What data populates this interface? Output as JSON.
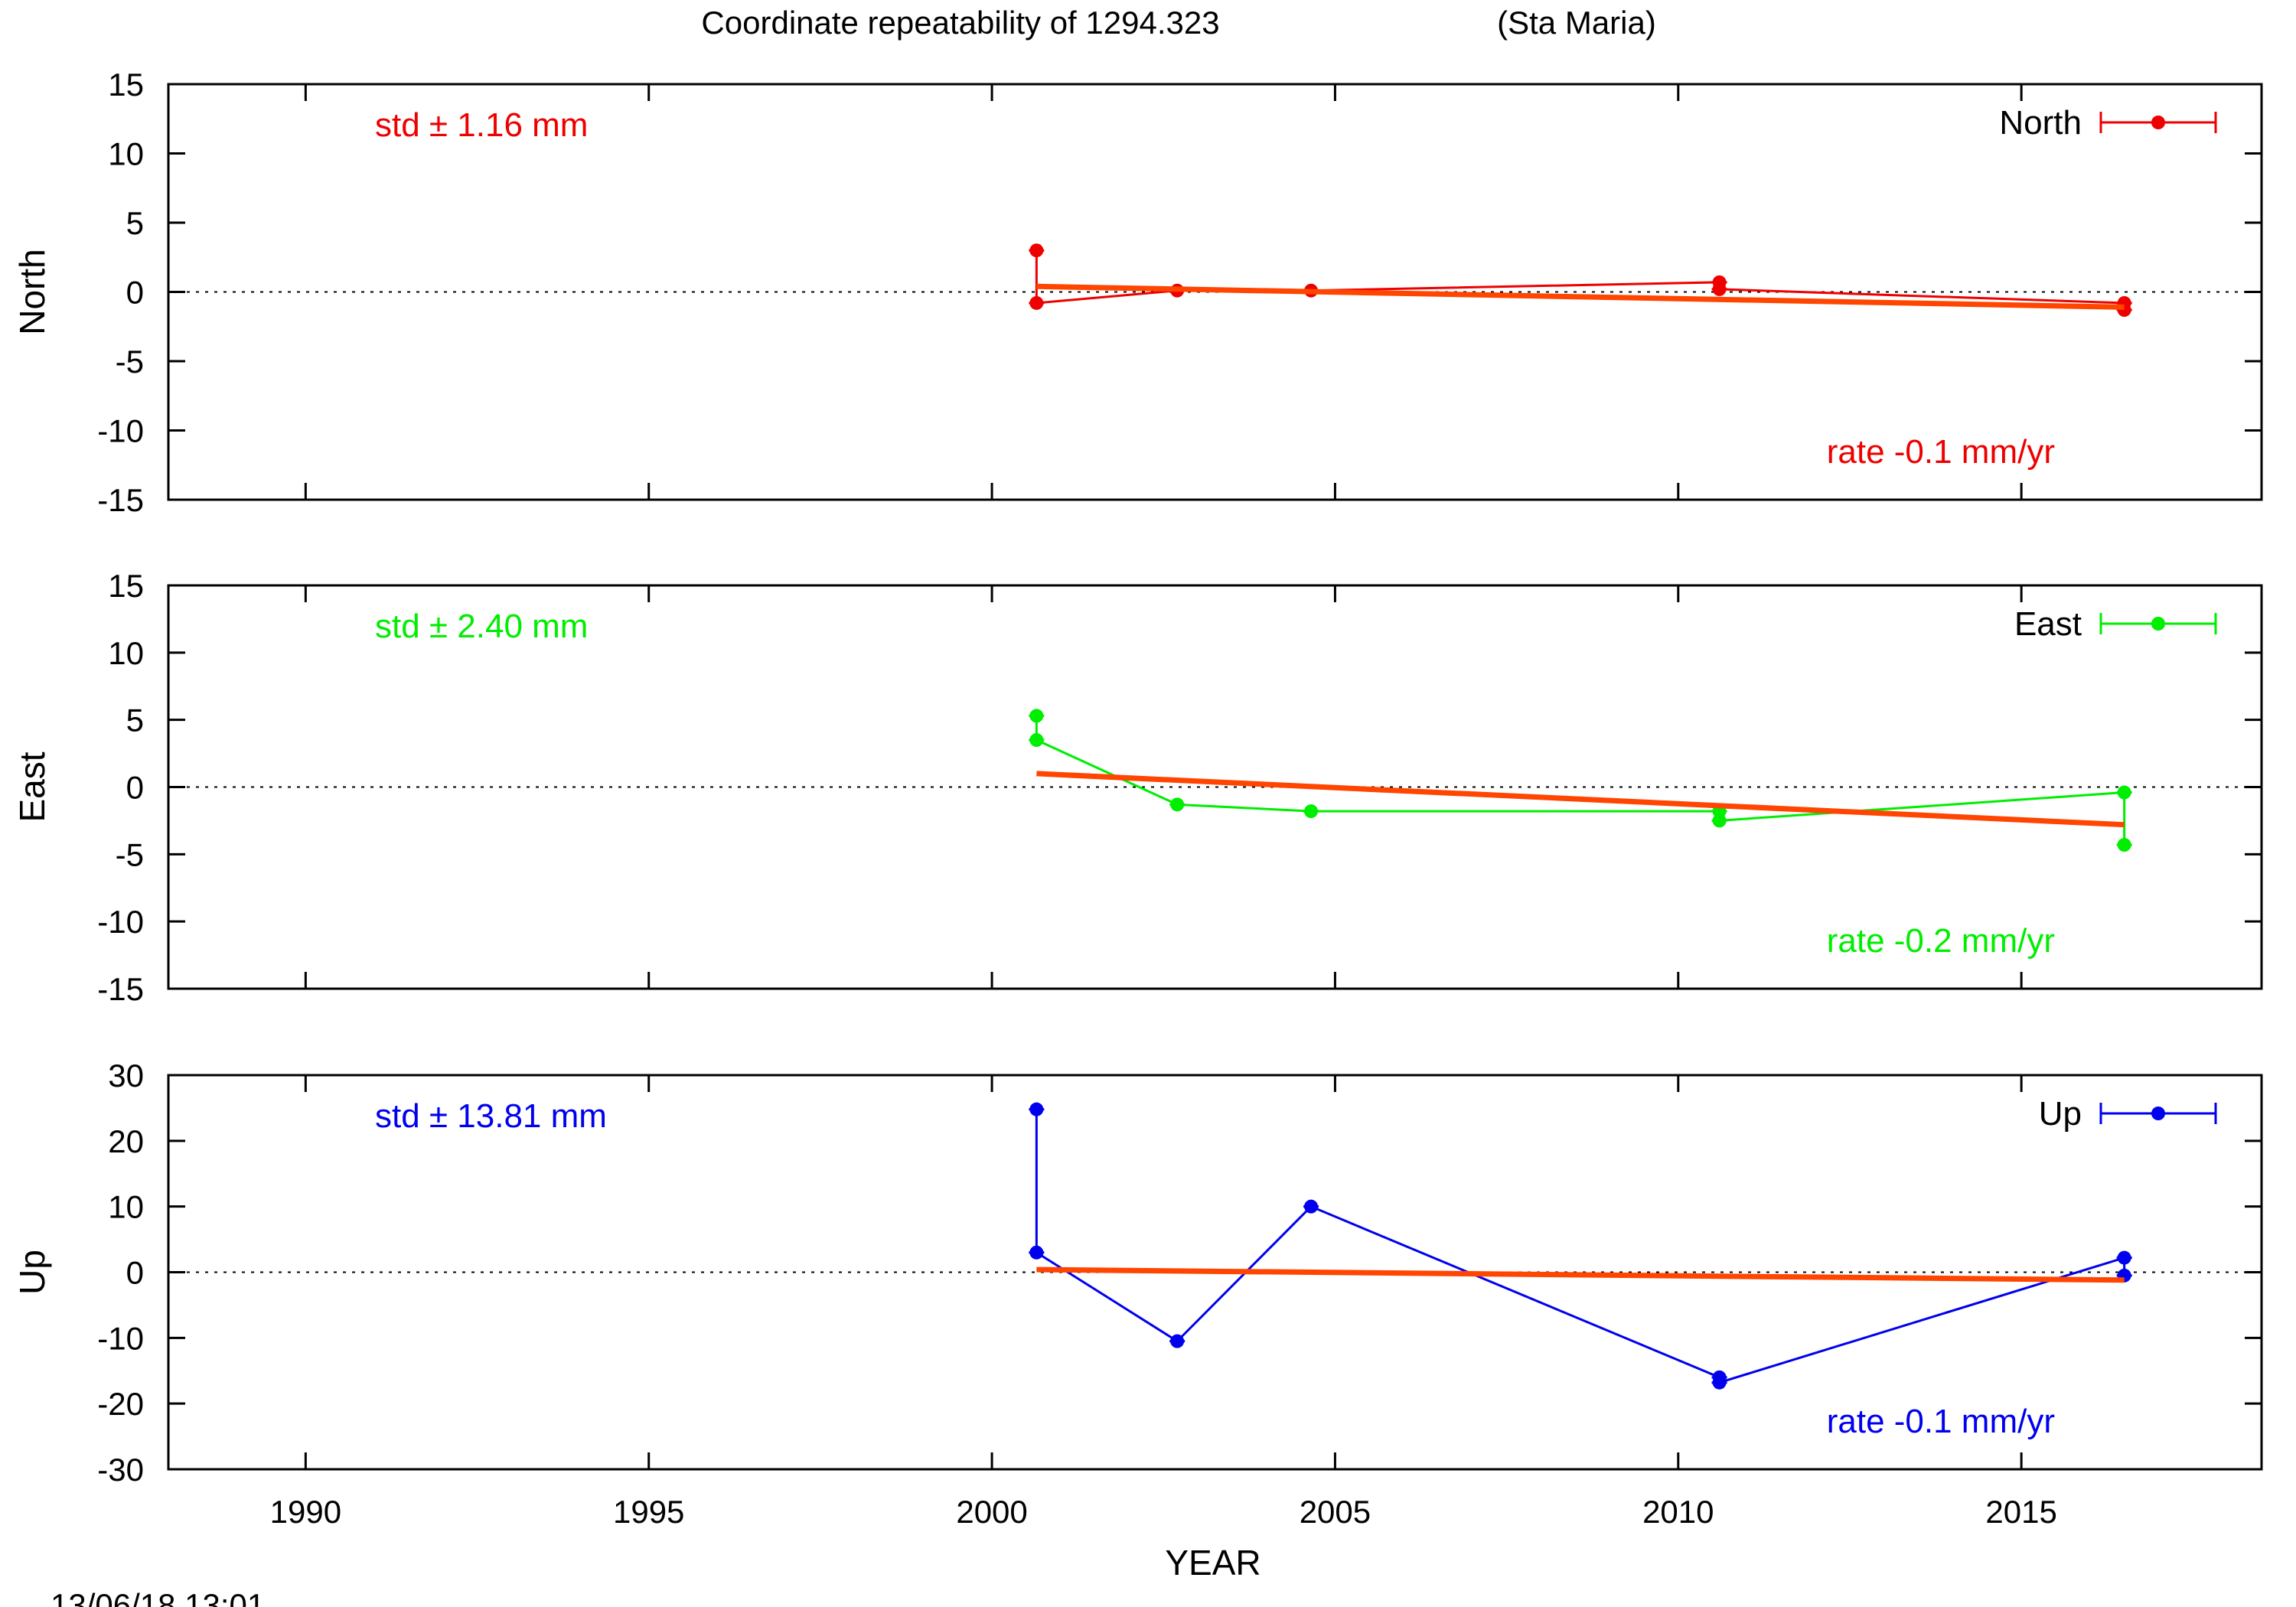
{
  "title": "Coordinate repeatability of 1294.323",
  "station": "(Sta Maria)",
  "timestamp": "13/06/18 13:01",
  "colors": {
    "north": "#ee0000",
    "east": "#00ee00",
    "up": "#0000ee",
    "fit": "#ff4500"
  },
  "chart_data": [
    {
      "type": "line",
      "id": "north",
      "ylabel": "North",
      "xlabel": "",
      "xlim": [
        1988,
        2018.5
      ],
      "ylim": [
        -15,
        15
      ],
      "yticks": [
        15,
        10,
        5,
        0,
        -5,
        -10,
        -15
      ],
      "xticks": [
        1990,
        1995,
        2000,
        2005,
        2010,
        2015
      ],
      "legend": "North",
      "legend_position": "top-right",
      "std_text": "std ± 1.16 mm",
      "rate_text": "rate -0.1 mm/yr",
      "series": [
        {
          "name": "North",
          "x": [
            2000.65,
            2000.65,
            2002.7,
            2004.65,
            2010.6,
            2010.6,
            2016.5,
            2016.5
          ],
          "y": [
            3.0,
            -0.8,
            0.1,
            0.1,
            0.7,
            0.2,
            -0.8,
            -1.3
          ]
        }
      ],
      "fit": {
        "x": [
          2000.65,
          2016.5
        ],
        "y": [
          0.4,
          -1.1
        ]
      }
    },
    {
      "type": "line",
      "id": "east",
      "ylabel": "East",
      "xlabel": "",
      "xlim": [
        1988,
        2018.5
      ],
      "ylim": [
        -15,
        15
      ],
      "yticks": [
        15,
        10,
        5,
        0,
        -5,
        -10,
        -15
      ],
      "xticks": [
        1990,
        1995,
        2000,
        2005,
        2010,
        2015
      ],
      "legend": "East",
      "legend_position": "top-right",
      "std_text": "std ± 2.40 mm",
      "rate_text": "rate -0.2 mm/yr",
      "series": [
        {
          "name": "East",
          "x": [
            2000.65,
            2000.65,
            2002.7,
            2004.65,
            2010.6,
            2010.6,
            2016.5,
            2016.5
          ],
          "y": [
            5.3,
            3.5,
            -1.3,
            -1.8,
            -1.8,
            -2.5,
            -0.4,
            -4.3
          ]
        }
      ],
      "fit": {
        "x": [
          2000.65,
          2016.5
        ],
        "y": [
          1.0,
          -2.8
        ]
      }
    },
    {
      "type": "line",
      "id": "up",
      "ylabel": "Up",
      "xlabel": "YEAR",
      "xlim": [
        1988,
        2018.5
      ],
      "ylim": [
        -30,
        30
      ],
      "yticks": [
        30,
        20,
        10,
        0,
        -10,
        -20,
        -30
      ],
      "xticks": [
        1990,
        1995,
        2000,
        2005,
        2010,
        2015
      ],
      "legend": "Up",
      "legend_position": "top-right",
      "std_text": "std ± 13.81 mm",
      "rate_text": "rate -0.1 mm/yr",
      "series": [
        {
          "name": "Up",
          "x": [
            2000.65,
            2000.65,
            2002.7,
            2004.65,
            2010.6,
            2010.6,
            2016.5,
            2016.5
          ],
          "y": [
            24.8,
            3.0,
            -10.5,
            10.0,
            -16.0,
            -16.8,
            2.2,
            -0.5
          ]
        }
      ],
      "fit": {
        "x": [
          2000.65,
          2016.5
        ],
        "y": [
          0.4,
          -1.2
        ]
      }
    }
  ]
}
